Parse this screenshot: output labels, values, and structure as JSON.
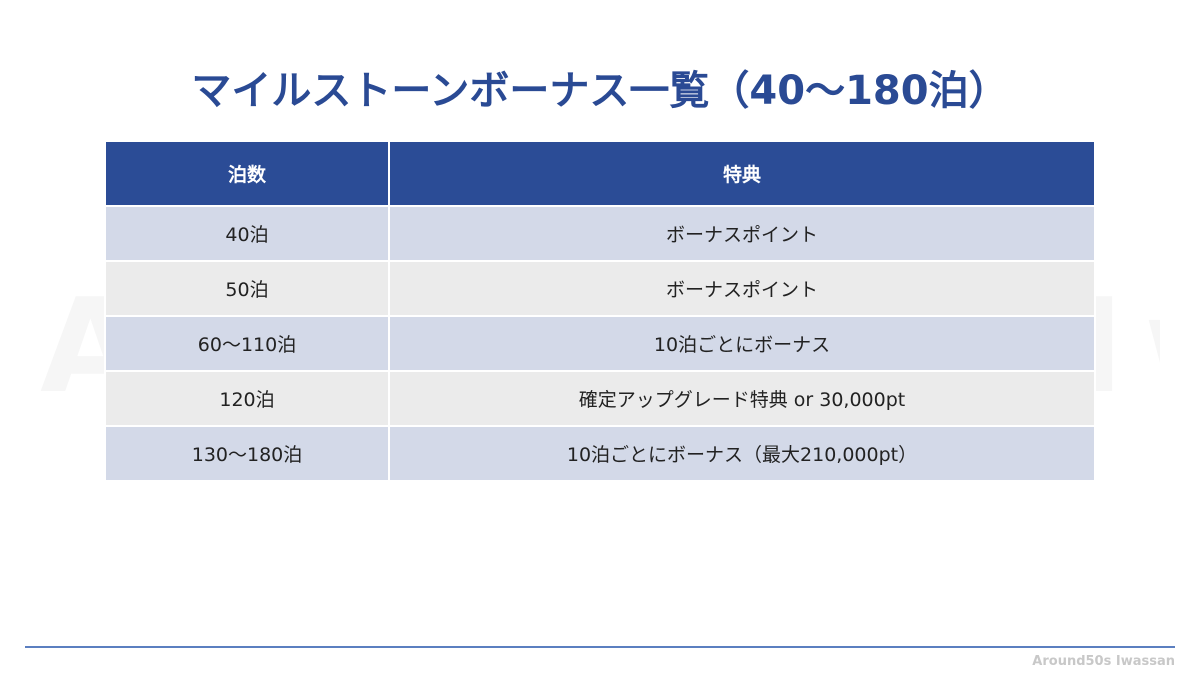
{
  "header": {
    "title": "マイルストーンボーナス一覧（40〜180泊）"
  },
  "table": {
    "columns": [
      "泊数",
      "特典"
    ],
    "rows": [
      [
        "40泊",
        "ボーナスポイント"
      ],
      [
        "50泊",
        "ボーナスポイント"
      ],
      [
        "60〜110泊",
        "10泊ごとにボーナス"
      ],
      [
        "120泊",
        "確定アップグレード特典 or 30,000pt"
      ],
      [
        "130〜180泊",
        "10泊ごとにボーナス（最大210,000pt）"
      ]
    ]
  },
  "footer": {
    "brand": "Around50s Iwassan"
  }
}
